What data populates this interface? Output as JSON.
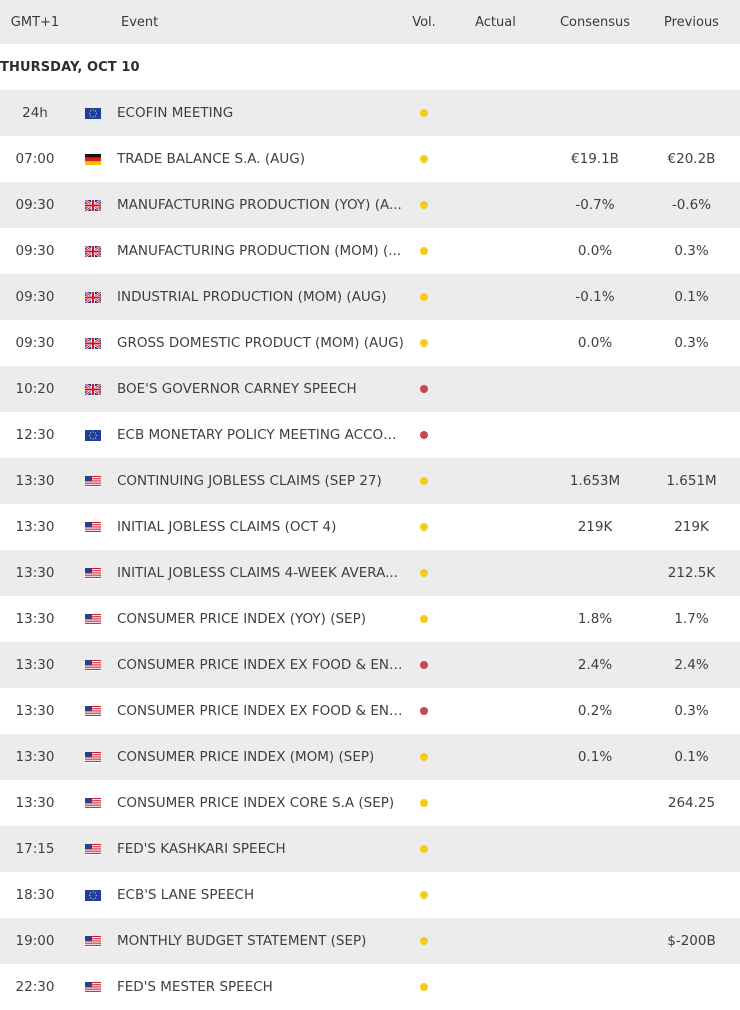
{
  "header": {
    "timezone": "GMT+1",
    "event": "Event",
    "vol": "Vol.",
    "actual": "Actual",
    "consensus": "Consensus",
    "previous": "Previous"
  },
  "date_label": "THURSDAY, OCT 10",
  "colors": {
    "medium_volatility": "#f5cc16",
    "high_volatility": "#c94950",
    "stripe": "#ececec"
  },
  "rows": [
    {
      "time": "24h",
      "flag": "eu-flag-icon",
      "event": "ECOFIN MEETING",
      "vol": "medium",
      "actual": "",
      "consensus": "",
      "previous": ""
    },
    {
      "time": "07:00",
      "flag": "de-flag-icon",
      "event": "TRADE BALANCE S.A. (AUG)",
      "vol": "medium",
      "actual": "",
      "consensus": "€19.1B",
      "previous": "€20.2B"
    },
    {
      "time": "09:30",
      "flag": "uk-flag-icon",
      "event": "MANUFACTURING PRODUCTION (YOY) (A...",
      "vol": "medium",
      "actual": "",
      "consensus": "-0.7%",
      "previous": "-0.6%"
    },
    {
      "time": "09:30",
      "flag": "uk-flag-icon",
      "event": "MANUFACTURING PRODUCTION (MOM) (...",
      "vol": "medium",
      "actual": "",
      "consensus": "0.0%",
      "previous": "0.3%"
    },
    {
      "time": "09:30",
      "flag": "uk-flag-icon",
      "event": "INDUSTRIAL PRODUCTION (MOM) (AUG)",
      "vol": "medium",
      "actual": "",
      "consensus": "-0.1%",
      "previous": "0.1%"
    },
    {
      "time": "09:30",
      "flag": "uk-flag-icon",
      "event": "GROSS DOMESTIC PRODUCT (MOM) (AUG)",
      "vol": "medium",
      "actual": "",
      "consensus": "0.0%",
      "previous": "0.3%"
    },
    {
      "time": "10:20",
      "flag": "uk-flag-icon",
      "event": "BOE'S GOVERNOR CARNEY SPEECH",
      "vol": "high",
      "actual": "",
      "consensus": "",
      "previous": ""
    },
    {
      "time": "12:30",
      "flag": "eu-flag-icon",
      "event": "ECB MONETARY POLICY MEETING ACCOU...",
      "vol": "high",
      "actual": "",
      "consensus": "",
      "previous": ""
    },
    {
      "time": "13:30",
      "flag": "us-flag-icon",
      "event": "CONTINUING JOBLESS CLAIMS (SEP 27)",
      "vol": "medium",
      "actual": "",
      "consensus": "1.653M",
      "previous": "1.651M"
    },
    {
      "time": "13:30",
      "flag": "us-flag-icon",
      "event": "INITIAL JOBLESS CLAIMS (OCT 4)",
      "vol": "medium",
      "actual": "",
      "consensus": "219K",
      "previous": "219K"
    },
    {
      "time": "13:30",
      "flag": "us-flag-icon",
      "event": "INITIAL JOBLESS CLAIMS 4-WEEK AVERA...",
      "vol": "medium",
      "actual": "",
      "consensus": "",
      "previous": "212.5K"
    },
    {
      "time": "13:30",
      "flag": "us-flag-icon",
      "event": "CONSUMER PRICE INDEX (YOY) (SEP)",
      "vol": "medium",
      "actual": "",
      "consensus": "1.8%",
      "previous": "1.7%"
    },
    {
      "time": "13:30",
      "flag": "us-flag-icon",
      "event": "CONSUMER PRICE INDEX EX FOOD & ENE...",
      "vol": "high",
      "actual": "",
      "consensus": "2.4%",
      "previous": "2.4%"
    },
    {
      "time": "13:30",
      "flag": "us-flag-icon",
      "event": "CONSUMER PRICE INDEX EX FOOD & ENE...",
      "vol": "high",
      "actual": "",
      "consensus": "0.2%",
      "previous": "0.3%"
    },
    {
      "time": "13:30",
      "flag": "us-flag-icon",
      "event": "CONSUMER PRICE INDEX (MOM) (SEP)",
      "vol": "medium",
      "actual": "",
      "consensus": "0.1%",
      "previous": "0.1%"
    },
    {
      "time": "13:30",
      "flag": "us-flag-icon",
      "event": "CONSUMER PRICE INDEX CORE S.A (SEP)",
      "vol": "medium",
      "actual": "",
      "consensus": "",
      "previous": "264.25"
    },
    {
      "time": "17:15",
      "flag": "us-flag-icon",
      "event": "FED'S KASHKARI SPEECH",
      "vol": "medium",
      "actual": "",
      "consensus": "",
      "previous": ""
    },
    {
      "time": "18:30",
      "flag": "eu-flag-icon",
      "event": "ECB'S LANE SPEECH",
      "vol": "medium",
      "actual": "",
      "consensus": "",
      "previous": ""
    },
    {
      "time": "19:00",
      "flag": "us-flag-icon",
      "event": "MONTHLY BUDGET STATEMENT (SEP)",
      "vol": "medium",
      "actual": "",
      "consensus": "",
      "previous": "$-200B"
    },
    {
      "time": "22:30",
      "flag": "us-flag-icon",
      "event": "FED'S MESTER SPEECH",
      "vol": "medium",
      "actual": "",
      "consensus": "",
      "previous": ""
    }
  ]
}
